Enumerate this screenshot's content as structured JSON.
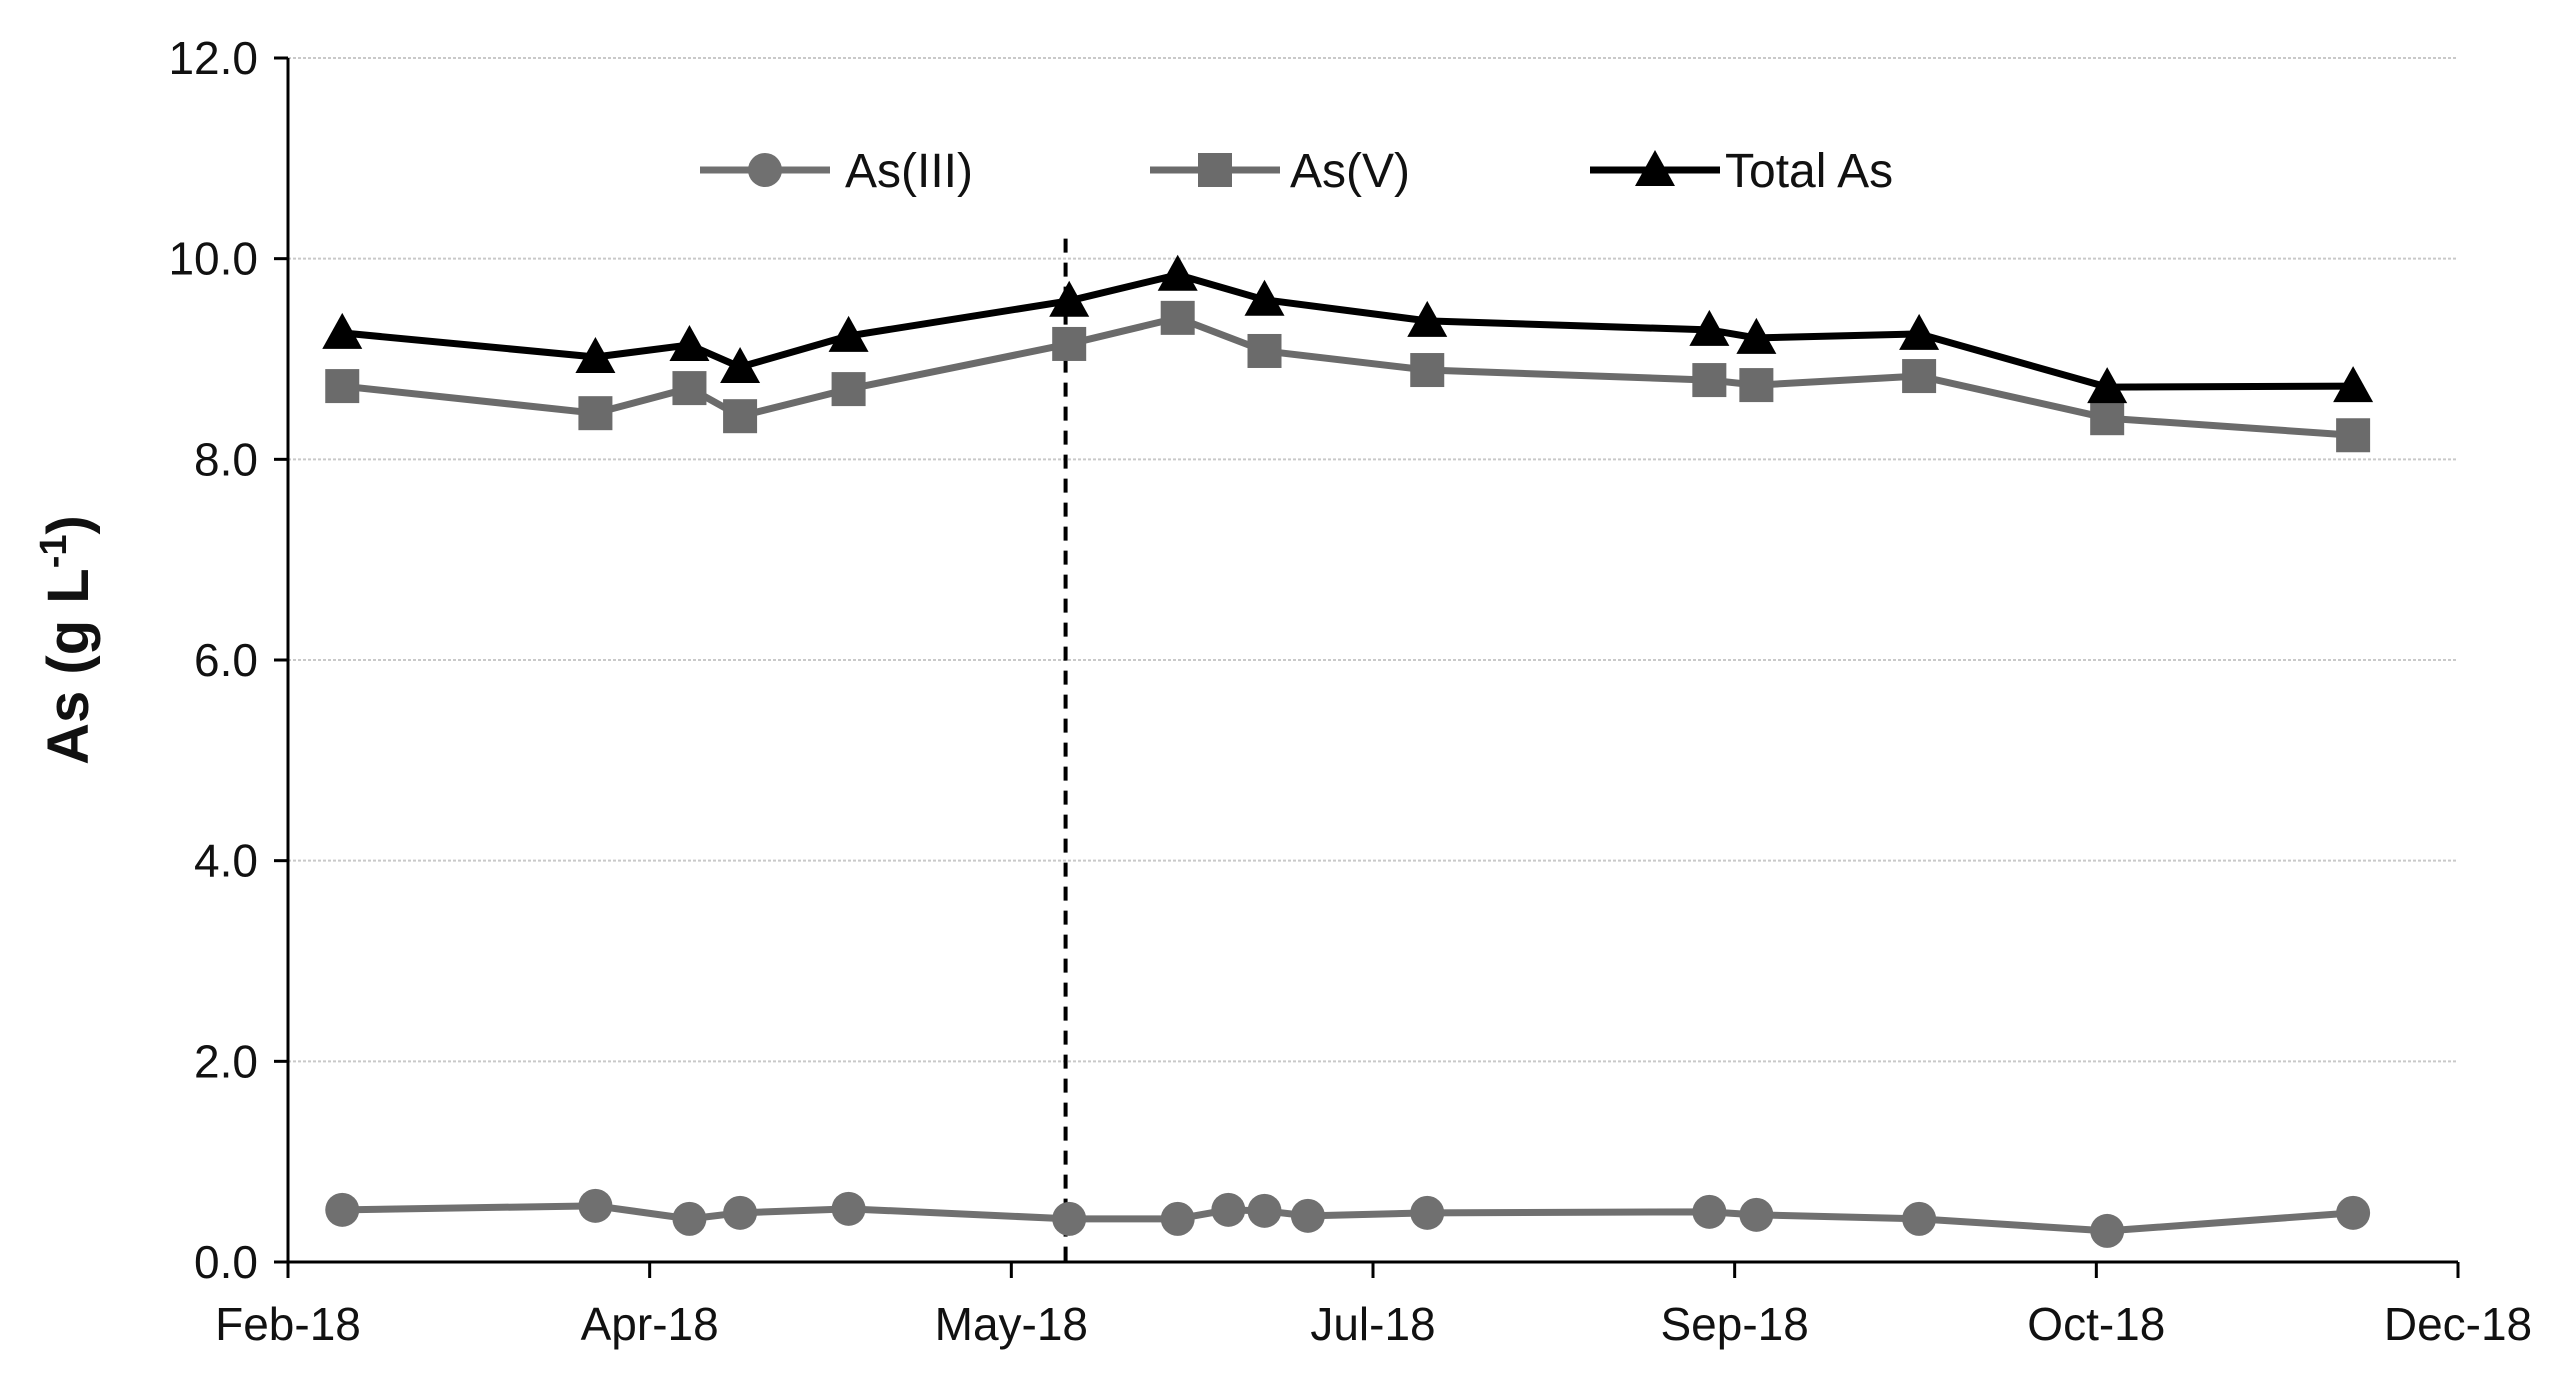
{
  "chart_data": {
    "type": "line",
    "title": "",
    "xlabel": "",
    "ylabel": {
      "main": "As (g L",
      "superscript": "-1",
      "close": ")"
    },
    "ylim": [
      0,
      12
    ],
    "y_ticks": [
      "0.0",
      "2.0",
      "4.0",
      "6.0",
      "8.0",
      "10.0",
      "12.0"
    ],
    "y_tick_values": [
      0,
      2,
      4,
      6,
      8,
      10,
      12
    ],
    "xlim": [
      0,
      300
    ],
    "x_ticks": [
      "Feb-18",
      "Apr-18",
      "May-18",
      "Jul-18",
      "Sep-18",
      "Oct-18",
      "Dec-18"
    ],
    "x_tick_values": [
      0,
      50,
      100,
      150,
      200,
      250,
      300
    ],
    "grid": true,
    "legend_position": "top-center",
    "reference_line": {
      "style": "dashed",
      "x": 107.5
    },
    "series": [
      {
        "name": "As(III)",
        "marker": "circle",
        "color": "#707070",
        "x": [
          7.5,
          42.5,
          55.5,
          62.5,
          77.5,
          108,
          123,
          130,
          135,
          141,
          157.5,
          196.5,
          203,
          225.5,
          251.5,
          285.5
        ],
        "values": [
          0.52,
          0.56,
          0.43,
          0.49,
          0.53,
          0.43,
          0.43,
          0.52,
          0.51,
          0.46,
          0.49,
          0.5,
          0.47,
          0.43,
          0.31,
          0.49
        ]
      },
      {
        "name": "As(V)",
        "marker": "square",
        "color": "#6b6b6b",
        "x": [
          7.5,
          42.5,
          55.5,
          62.5,
          77.5,
          108,
          123,
          135,
          157.5,
          196.5,
          203,
          225.5,
          251.5,
          285.5
        ],
        "values": [
          8.73,
          8.46,
          8.71,
          8.43,
          8.7,
          9.15,
          9.41,
          9.08,
          8.89,
          8.79,
          8.74,
          8.83,
          8.41,
          8.24
        ]
      },
      {
        "name": "Total As",
        "marker": "triangle",
        "color": "#000000",
        "x": [
          7.5,
          42.5,
          55.5,
          62.5,
          77.5,
          108,
          123,
          135,
          157.5,
          196.5,
          203,
          225.5,
          251.5,
          285.5
        ],
        "values": [
          9.26,
          9.02,
          9.14,
          8.92,
          9.23,
          9.58,
          9.84,
          9.59,
          9.38,
          9.29,
          9.21,
          9.25,
          8.72,
          8.73
        ]
      }
    ]
  }
}
